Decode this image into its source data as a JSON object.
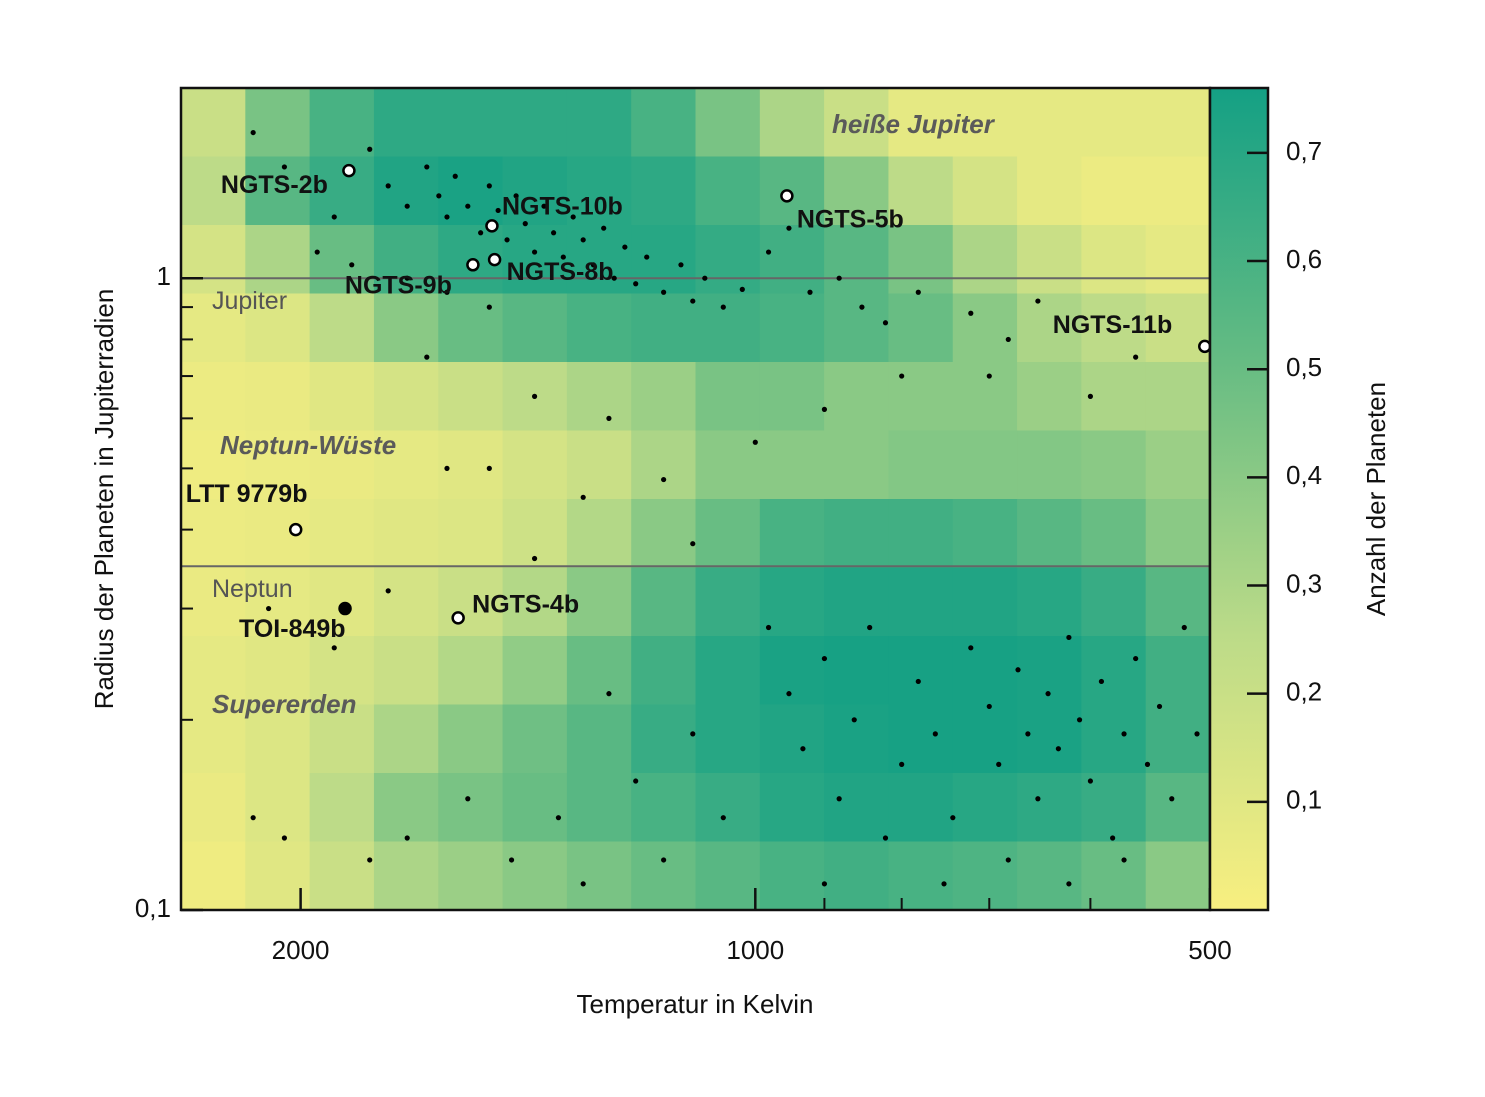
{
  "chart_data": {
    "type": "scatter",
    "xlabel": "Temperatur in Kelvin",
    "ylabel": "Radius der Planeten in Jupiterradien",
    "colorbar_label": "Anzahl der Planeten",
    "xscale": "log",
    "yscale": "log",
    "xlim": [
      2400,
      500
    ],
    "ylim": [
      2,
      0.1
    ],
    "xticks": [
      2000,
      1000,
      500
    ],
    "xminor": [
      900,
      800,
      700,
      600
    ],
    "yticks": [
      1,
      {
        "value": 0.1,
        "label": "0,1"
      }
    ],
    "yminor": [
      0.9,
      0.8,
      0.7,
      0.6,
      0.5,
      0.4,
      0.3,
      0.2
    ],
    "clim": [
      0,
      0.76
    ],
    "cticks": [
      {
        "value": 0.1,
        "label": "0,1"
      },
      {
        "value": 0.2,
        "label": "0,2"
      },
      {
        "value": 0.3,
        "label": "0,3"
      },
      {
        "value": 0.4,
        "label": "0,4"
      },
      {
        "value": 0.5,
        "label": "0,5"
      },
      {
        "value": 0.6,
        "label": "0,6"
      },
      {
        "value": 0.7,
        "label": "0,7"
      }
    ],
    "colormap": [
      "#f8ef80",
      "#bcdb88",
      "#66bc83",
      "#14a084"
    ],
    "heatmap": {
      "z": [
        [
          0.2,
          0.45,
          0.6,
          0.68,
          0.68,
          0.68,
          0.68,
          0.6,
          0.45,
          0.3,
          0.2,
          0.08,
          0.08,
          0.08,
          0.08,
          0.08
        ],
        [
          0.25,
          0.55,
          0.65,
          0.72,
          0.74,
          0.72,
          0.7,
          0.68,
          0.6,
          0.55,
          0.4,
          0.25,
          0.15,
          0.08,
          0.05,
          0.05
        ],
        [
          0.15,
          0.3,
          0.5,
          0.62,
          0.68,
          0.7,
          0.7,
          0.7,
          0.66,
          0.62,
          0.55,
          0.45,
          0.3,
          0.2,
          0.12,
          0.08
        ],
        [
          0.08,
          0.12,
          0.25,
          0.4,
          0.5,
          0.55,
          0.6,
          0.62,
          0.62,
          0.6,
          0.55,
          0.5,
          0.4,
          0.3,
          0.25,
          0.2
        ],
        [
          0.05,
          0.06,
          0.1,
          0.15,
          0.2,
          0.25,
          0.3,
          0.35,
          0.45,
          0.45,
          0.4,
          0.4,
          0.4,
          0.35,
          0.3,
          0.3
        ],
        [
          0.04,
          0.05,
          0.06,
          0.08,
          0.1,
          0.15,
          0.2,
          0.3,
          0.4,
          0.4,
          0.4,
          0.42,
          0.42,
          0.42,
          0.4,
          0.35
        ],
        [
          0.05,
          0.06,
          0.08,
          0.1,
          0.12,
          0.18,
          0.28,
          0.4,
          0.5,
          0.6,
          0.62,
          0.62,
          0.6,
          0.55,
          0.5,
          0.4
        ],
        [
          0.06,
          0.08,
          0.1,
          0.15,
          0.2,
          0.28,
          0.4,
          0.55,
          0.65,
          0.7,
          0.72,
          0.72,
          0.72,
          0.7,
          0.65,
          0.55
        ],
        [
          0.08,
          0.1,
          0.15,
          0.2,
          0.28,
          0.38,
          0.5,
          0.62,
          0.7,
          0.74,
          0.75,
          0.75,
          0.75,
          0.74,
          0.7,
          0.62
        ],
        [
          0.08,
          0.12,
          0.2,
          0.3,
          0.4,
          0.48,
          0.55,
          0.65,
          0.7,
          0.72,
          0.74,
          0.75,
          0.75,
          0.74,
          0.7,
          0.62
        ],
        [
          0.06,
          0.12,
          0.25,
          0.4,
          0.45,
          0.5,
          0.55,
          0.6,
          0.65,
          0.7,
          0.72,
          0.72,
          0.7,
          0.68,
          0.65,
          0.55
        ],
        [
          0.04,
          0.1,
          0.2,
          0.3,
          0.35,
          0.4,
          0.45,
          0.5,
          0.55,
          0.6,
          0.62,
          0.6,
          0.58,
          0.55,
          0.5,
          0.4
        ]
      ]
    },
    "reference_lines": [
      {
        "value": 1,
        "label": "Jupiter"
      },
      {
        "value": 0.35,
        "label": "Neptun"
      }
    ],
    "annotations": [
      "heiße Jupiter",
      "Neptun-Wüste",
      "Supererden"
    ],
    "color": "#000000",
    "points": {
      "x": [
        1800,
        1750,
        1700,
        1650,
        1620,
        1600,
        1580,
        1550,
        1520,
        1500,
        1480,
        1460,
        1440,
        1420,
        1400,
        1380,
        1360,
        1340,
        1320,
        1300,
        1280,
        1260,
        1240,
        1220,
        1200,
        1180,
        1150,
        1120,
        1100,
        1080,
        1050,
        1020,
        980,
        950,
        920,
        880,
        850,
        820,
        780,
        720,
        680,
        650,
        1900,
        2050,
        2150,
        1950,
        1850,
        1700,
        1600,
        1500,
        1650,
        1400,
        1250,
        1600,
        1500,
        1300,
        1150,
        1000,
        900,
        800,
        700,
        600,
        560,
        1100,
        1400,
        1750,
        2100,
        1900,
        980,
        950,
        930,
        900,
        880,
        860,
        840,
        820,
        800,
        780,
        760,
        740,
        720,
        700,
        690,
        680,
        670,
        660,
        650,
        640,
        630,
        620,
        610,
        600,
        590,
        580,
        570,
        560,
        550,
        540,
        530,
        520,
        510,
        1050,
        1100,
        1150,
        1200,
        1250,
        1300,
        1350,
        1450,
        1550,
        1700,
        1800,
        2150,
        2050,
        900,
        750,
        620,
        570
      ],
      "y": [
        1.6,
        1.4,
        1.3,
        1.5,
        1.35,
        1.25,
        1.45,
        1.3,
        1.18,
        1.4,
        1.28,
        1.15,
        1.35,
        1.22,
        1.1,
        1.3,
        1.18,
        1.08,
        1.25,
        1.15,
        1.05,
        1.2,
        1.0,
        1.12,
        0.98,
        1.08,
        0.95,
        1.05,
        0.92,
        1.0,
        0.9,
        0.96,
        1.1,
        1.2,
        0.95,
        1.0,
        0.9,
        0.85,
        0.95,
        0.88,
        0.8,
        0.92,
        1.25,
        1.5,
        1.7,
        1.1,
        1.05,
        1.0,
        0.95,
        0.9,
        0.75,
        0.65,
        0.6,
        0.5,
        0.5,
        0.45,
        0.48,
        0.55,
        0.62,
        0.7,
        0.7,
        0.65,
        0.75,
        0.38,
        0.36,
        0.32,
        0.3,
        0.26,
        0.28,
        0.22,
        0.18,
        0.25,
        0.15,
        0.2,
        0.28,
        0.13,
        0.17,
        0.23,
        0.19,
        0.14,
        0.26,
        0.21,
        0.17,
        0.12,
        0.24,
        0.19,
        0.15,
        0.22,
        0.18,
        0.27,
        0.2,
        0.16,
        0.23,
        0.13,
        0.19,
        0.25,
        0.17,
        0.21,
        0.15,
        0.28,
        0.19,
        0.14,
        0.19,
        0.12,
        0.16,
        0.22,
        0.11,
        0.14,
        0.12,
        0.15,
        0.13,
        0.12,
        0.14,
        0.13,
        0.11,
        0.11,
        0.11,
        0.12
      ]
    },
    "highlighted": [
      {
        "name": "NGTS-2b",
        "x": 1858,
        "y": 1.48,
        "fill": "#ffffff"
      },
      {
        "name": "NGTS-10b",
        "x": 1494,
        "y": 1.21,
        "fill": "#ffffff"
      },
      {
        "name": "NGTS-9b",
        "x": 1538,
        "y": 1.05,
        "fill": "#ffffff"
      },
      {
        "name": "NGTS-8b",
        "x": 1488,
        "y": 1.07,
        "fill": "#ffffff"
      },
      {
        "name": "NGTS-5b",
        "x": 953,
        "y": 1.35,
        "fill": "#ffffff"
      },
      {
        "name": "NGTS-11b",
        "x": 504,
        "y": 0.78,
        "fill": "#ffffff"
      },
      {
        "name": "LTT 9779b",
        "x": 2015,
        "y": 0.4,
        "fill": "#ffffff"
      },
      {
        "name": "TOI-849b",
        "x": 1869,
        "y": 0.3,
        "fill": "#000000"
      },
      {
        "name": "NGTS-4b",
        "x": 1573,
        "y": 0.29,
        "fill": "#ffffff"
      }
    ]
  }
}
